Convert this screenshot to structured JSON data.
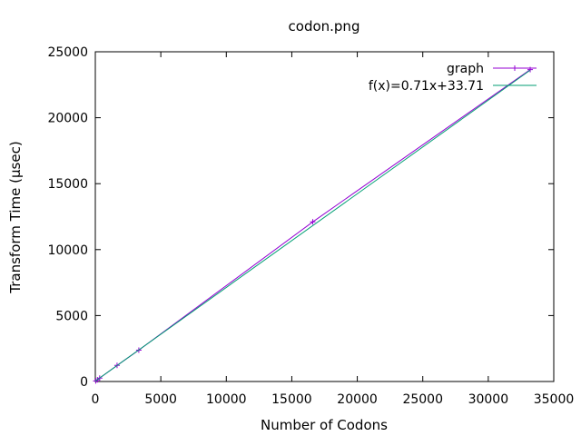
{
  "chart_data": {
    "type": "line",
    "title": "codon.png",
    "xlabel": "Number of Codons",
    "ylabel": "Transform Time (µsec)",
    "xlim": [
      0,
      35000
    ],
    "ylim": [
      0,
      25000
    ],
    "x_ticks": [
      0,
      5000,
      10000,
      15000,
      20000,
      25000,
      30000,
      35000
    ],
    "y_ticks": [
      0,
      5000,
      10000,
      15000,
      20000,
      25000
    ],
    "grid": false,
    "legend_position": "top-right",
    "series": [
      {
        "name": "graph",
        "style": "lines+points",
        "marker": "plus",
        "color": "#9400d3",
        "x": [
          33,
          166,
          332,
          1660,
          3320,
          16600,
          33200
        ],
        "y": [
          40,
          130,
          260,
          1220,
          2380,
          12100,
          23650
        ]
      },
      {
        "name": "f(x)=0.71x+33.71",
        "style": "line",
        "color": "#009e73",
        "fit": {
          "slope": 0.71,
          "intercept": 33.71
        },
        "x": [
          0,
          33200
        ]
      }
    ]
  }
}
